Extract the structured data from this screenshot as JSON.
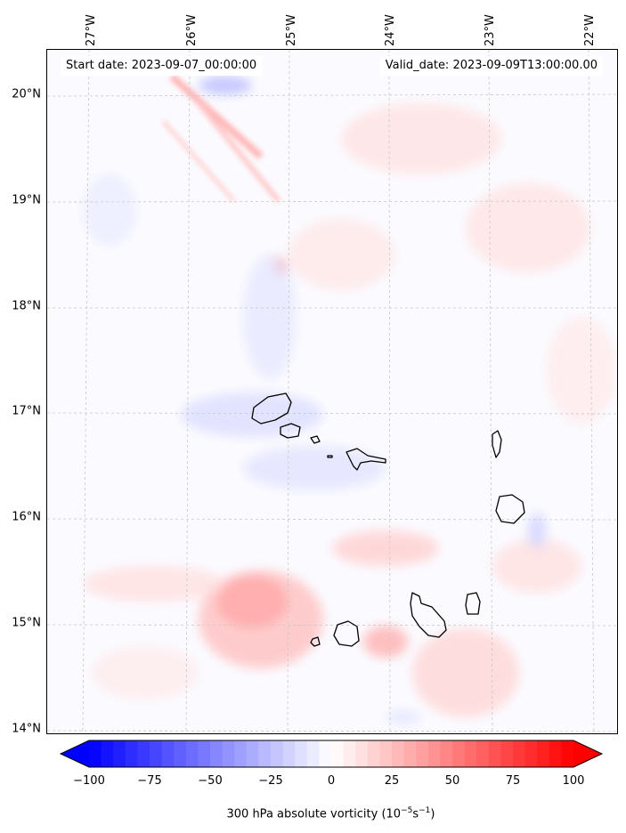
{
  "map": {
    "annotation_left": "Start date: 2023-09-07_00:00:00",
    "annotation_right": "Valid_date: 2023-09-09T13:00:00.00",
    "lon_labels": [
      "27°W",
      "26°W",
      "25°W",
      "24°W",
      "23°W",
      "22°W"
    ],
    "lat_labels": [
      "20°N",
      "19°N",
      "18°N",
      "17°N",
      "16°N",
      "15°N",
      "14°N"
    ],
    "colors": {
      "negative": "#0000ff",
      "positive": "#ff0000",
      "coastline": "#000000",
      "gridline": "#c8c8c8"
    }
  },
  "colorbar": {
    "ticks": [
      "−100",
      "−75",
      "−50",
      "−25",
      "0",
      "25",
      "50",
      "75",
      "100"
    ],
    "label": "300 hPa absolute vorticity (10",
    "label_exp": "−5",
    "label_mid": "s",
    "label_exp2": "−1",
    "label_end": ")"
  }
}
